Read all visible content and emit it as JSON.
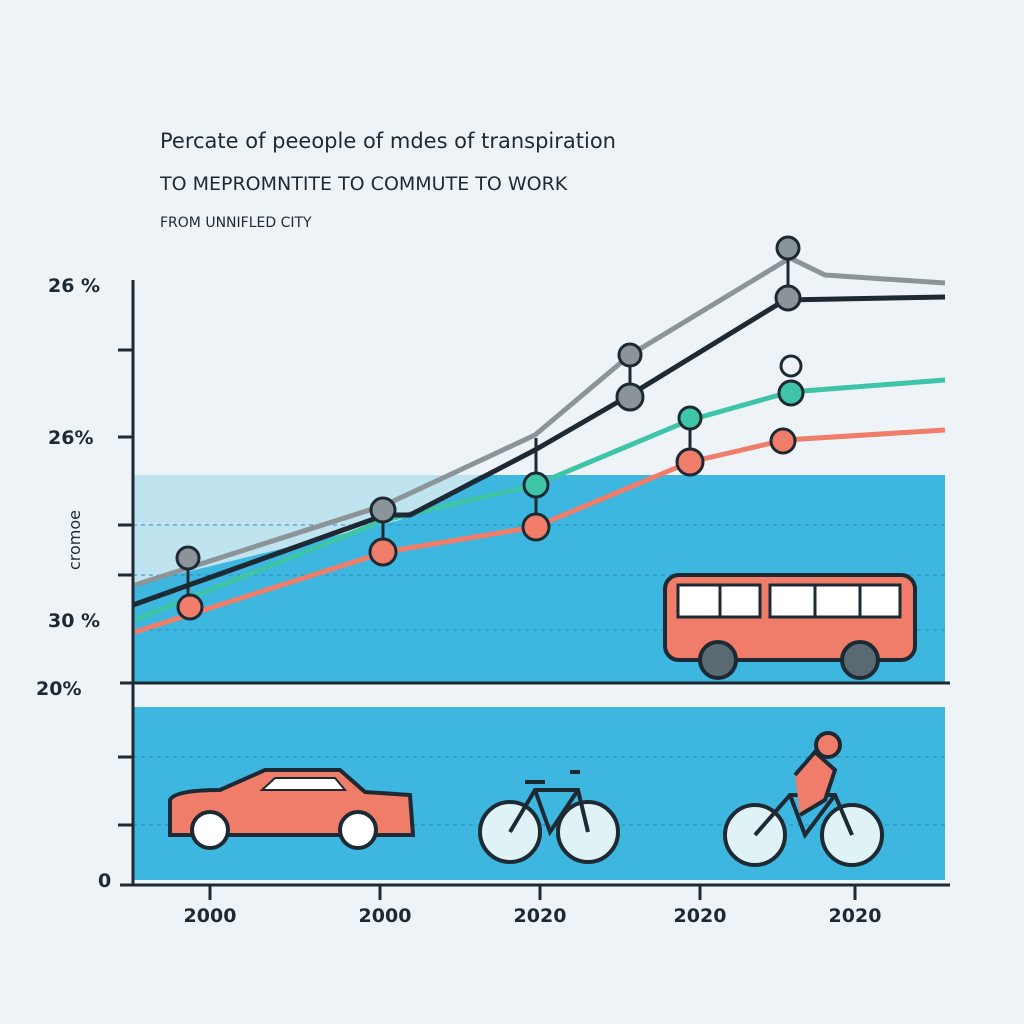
{
  "title": {
    "line1": "Percate of peeople of mdes of transpiration",
    "line2": "TO MEPROMNTITE TO COMMUTE TO WORK",
    "subtitle": "FROM UNNIFLED CITY"
  },
  "y_labels": [
    "26 %",
    "26%",
    "30 %",
    "20%",
    "0"
  ],
  "side_label": "cromoe",
  "x_labels": [
    "2000",
    "2000",
    "2020",
    "2020",
    "2020"
  ]
}
